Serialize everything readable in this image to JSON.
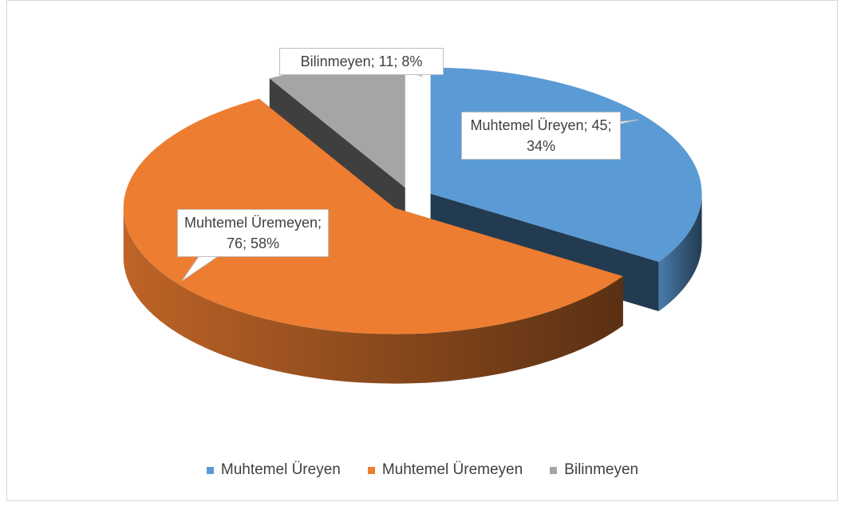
{
  "chart_data": {
    "type": "pie",
    "categories": [
      "Muhtemel Üreyen",
      "Muhtemel Üremeyen",
      "Bilinmeyen"
    ],
    "values": [
      45,
      76,
      11
    ],
    "value_labels": [
      "Muhtemel Üreyen; 45; 34%",
      "Muhtemel Üremeyen; 76; 58%",
      "Bilinmeyen; 11; 8%"
    ],
    "colors": [
      "#5b9bd5",
      "#ed7d31",
      "#a5a5a5"
    ],
    "legend": "bottom"
  }
}
